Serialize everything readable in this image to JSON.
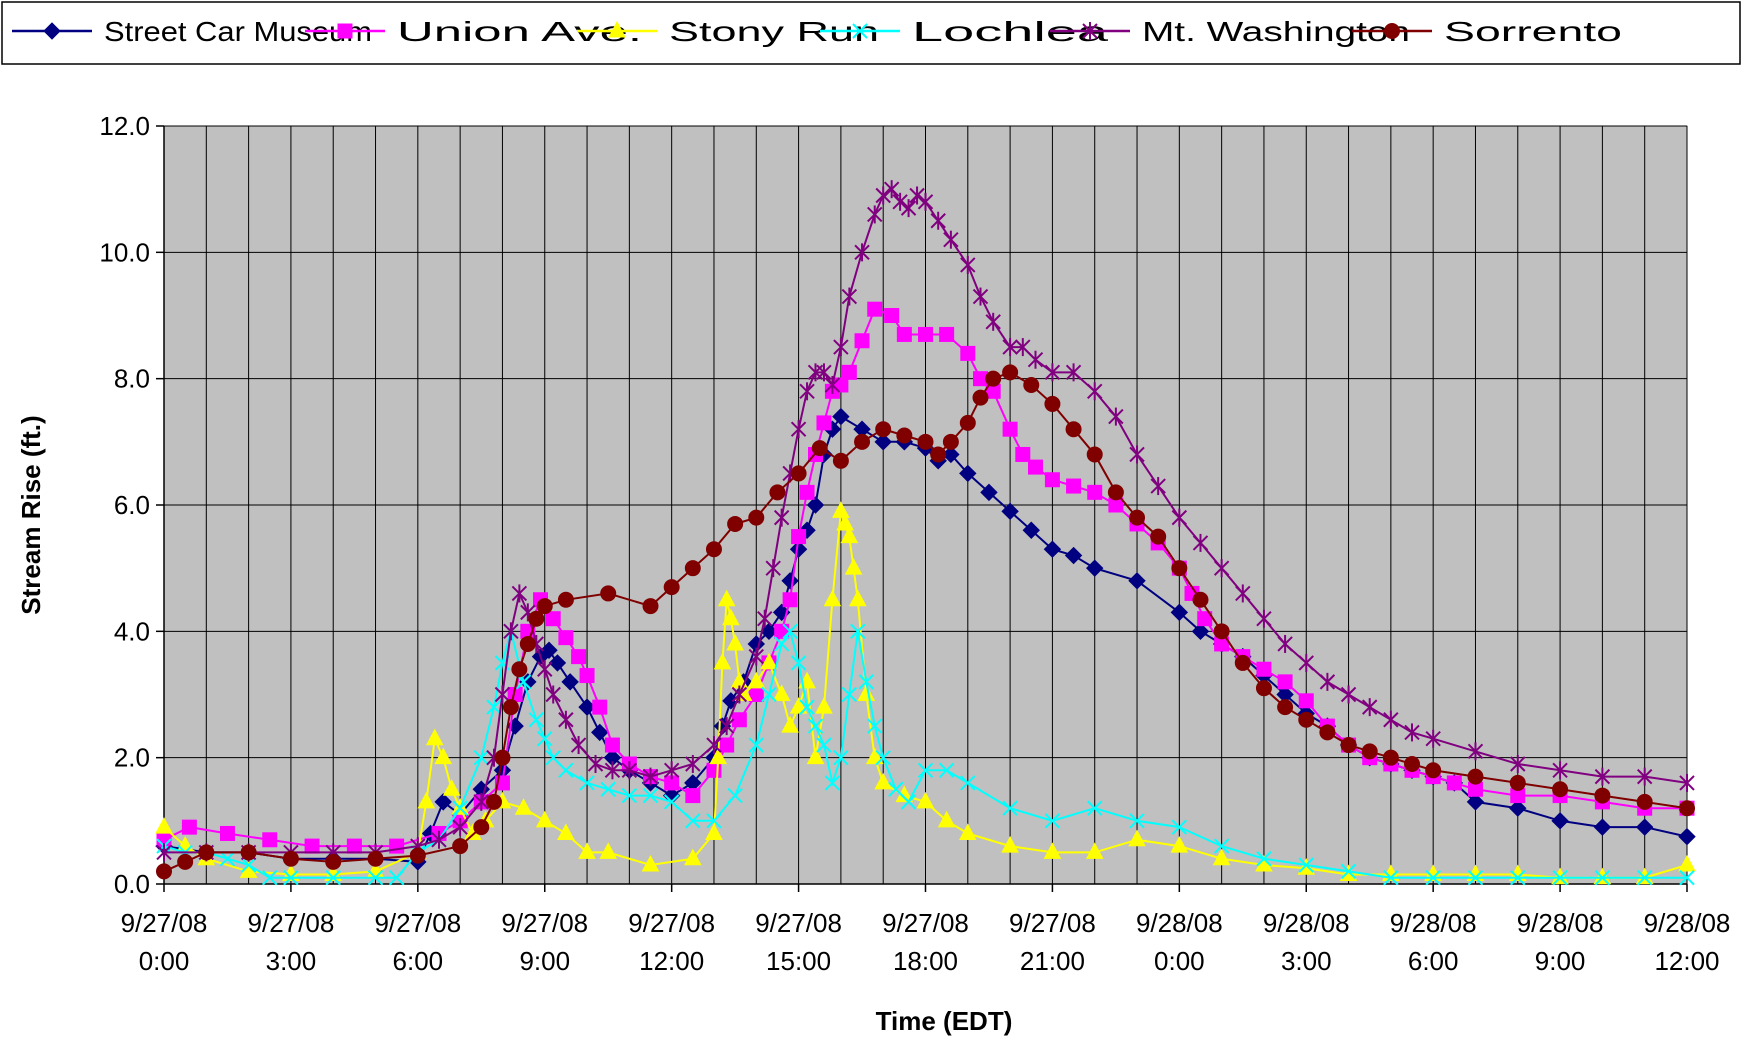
{
  "chart_data": {
    "type": "line",
    "title": "",
    "xlabel": "Time (EDT)",
    "ylabel": "Stream Rise (ft.)",
    "xlim_hours": [
      0,
      36
    ],
    "ylim": [
      0,
      12
    ],
    "y_ticks": [
      "0.0",
      "2.0",
      "4.0",
      "6.0",
      "8.0",
      "10.0",
      "12.0"
    ],
    "x_ticks": [
      {
        "date": "9/27/08",
        "time": "0:00",
        "hour": 0
      },
      {
        "date": "9/27/08",
        "time": "3:00",
        "hour": 3
      },
      {
        "date": "9/27/08",
        "time": "6:00",
        "hour": 6
      },
      {
        "date": "9/27/08",
        "time": "9:00",
        "hour": 9
      },
      {
        "date": "9/27/08",
        "time": "12:00",
        "hour": 12
      },
      {
        "date": "9/27/08",
        "time": "15:00",
        "hour": 15
      },
      {
        "date": "9/27/08",
        "time": "18:00",
        "hour": 18
      },
      {
        "date": "9/27/08",
        "time": "21:00",
        "hour": 21
      },
      {
        "date": "9/28/08",
        "time": "0:00",
        "hour": 24
      },
      {
        "date": "9/28/08",
        "time": "3:00",
        "hour": 27
      },
      {
        "date": "9/28/08",
        "time": "6:00",
        "hour": 30
      },
      {
        "date": "9/28/08",
        "time": "9:00",
        "hour": 33
      },
      {
        "date": "9/28/08",
        "time": "12:00",
        "hour": 36
      }
    ],
    "grid": true,
    "plot_background": "#c0c0c0",
    "legend_position": "top",
    "series": [
      {
        "name": "Street Car Museum",
        "color": "#000080",
        "marker": "diamond",
        "x": [
          0,
          1,
          2,
          3,
          4,
          5,
          6,
          6.3,
          6.6,
          7,
          7.5,
          8,
          8.3,
          8.6,
          8.9,
          9.1,
          9.3,
          9.6,
          10,
          10.3,
          10.6,
          11,
          11.5,
          12,
          12.5,
          13,
          13.2,
          13.4,
          13.7,
          14,
          14.3,
          14.6,
          14.8,
          15,
          15.2,
          15.4,
          15.6,
          15.8,
          16,
          16.5,
          17,
          17.5,
          18,
          18.3,
          18.6,
          19,
          19.5,
          20,
          20.5,
          21,
          21.5,
          22,
          23,
          24,
          24.5,
          25,
          25.5,
          26,
          26.5,
          27,
          27.5,
          28,
          28.5,
          29,
          29.5,
          30,
          30.5,
          31,
          32,
          33,
          34,
          35,
          36
        ],
        "y": [
          0.6,
          0.5,
          0.5,
          0.4,
          0.4,
          0.4,
          0.35,
          0.8,
          1.3,
          1.1,
          1.5,
          1.8,
          2.5,
          3.2,
          3.6,
          3.7,
          3.5,
          3.2,
          2.8,
          2.4,
          2.0,
          1.8,
          1.6,
          1.4,
          1.6,
          2.0,
          2.5,
          2.9,
          3.2,
          3.8,
          4.0,
          4.3,
          4.8,
          5.3,
          5.6,
          6.0,
          6.8,
          7.2,
          7.4,
          7.2,
          7.0,
          7.0,
          6.9,
          6.7,
          6.8,
          6.5,
          6.2,
          5.9,
          5.6,
          5.3,
          5.2,
          5.0,
          4.8,
          4.3,
          4.0,
          3.8,
          3.6,
          3.3,
          3.0,
          2.7,
          2.5,
          2.2,
          2.0,
          1.9,
          1.8,
          1.7,
          1.6,
          1.3,
          1.2,
          1.0,
          0.9,
          0.9,
          0.75
        ]
      },
      {
        "name": "Union Ave.",
        "color": "#ff00ff",
        "marker": "square",
        "x": [
          0,
          0.6,
          1.5,
          2.5,
          3.5,
          4.5,
          5.5,
          6.5,
          7,
          7.5,
          8,
          8.3,
          8.6,
          8.9,
          9.2,
          9.5,
          9.8,
          10,
          10.3,
          10.6,
          11,
          11.5,
          12,
          12.5,
          13,
          13.3,
          13.6,
          14,
          14.3,
          14.6,
          14.8,
          15,
          15.2,
          15.4,
          15.6,
          15.8,
          16,
          16.2,
          16.5,
          16.8,
          17.2,
          17.5,
          18,
          18.5,
          19,
          19.3,
          19.6,
          20,
          20.3,
          20.6,
          21,
          21.5,
          22,
          22.5,
          23,
          23.5,
          24,
          24.3,
          24.6,
          25,
          25.5,
          26,
          26.5,
          27,
          27.5,
          28,
          28.5,
          29,
          29.5,
          30,
          30.5,
          31,
          32,
          33,
          34,
          35,
          36
        ],
        "y": [
          0.7,
          0.9,
          0.8,
          0.7,
          0.6,
          0.6,
          0.6,
          0.8,
          1.0,
          1.3,
          1.6,
          3.0,
          4.0,
          4.5,
          4.2,
          3.9,
          3.6,
          3.3,
          2.8,
          2.2,
          1.9,
          1.7,
          1.6,
          1.4,
          1.8,
          2.2,
          2.6,
          3.0,
          3.5,
          4.0,
          4.5,
          5.5,
          6.2,
          6.8,
          7.3,
          7.8,
          7.9,
          8.1,
          8.6,
          9.1,
          9.0,
          8.7,
          8.7,
          8.7,
          8.4,
          8.0,
          7.8,
          7.2,
          6.8,
          6.6,
          6.4,
          6.3,
          6.2,
          6.0,
          5.7,
          5.4,
          5.0,
          4.6,
          4.2,
          3.8,
          3.6,
          3.4,
          3.2,
          2.9,
          2.5,
          2.2,
          2.0,
          1.9,
          1.8,
          1.7,
          1.6,
          1.5,
          1.4,
          1.4,
          1.3,
          1.2,
          1.2
        ]
      },
      {
        "name": "Stony Run",
        "color": "#ffff00",
        "marker": "triangle",
        "x": [
          0,
          0.5,
          1,
          2,
          3,
          4,
          5,
          6,
          6.2,
          6.4,
          6.6,
          6.8,
          7,
          7.3,
          7.6,
          8,
          8.5,
          9,
          9.5,
          10,
          10.5,
          11.5,
          12.5,
          13,
          13.1,
          13.2,
          13.3,
          13.4,
          13.5,
          13.6,
          13.7,
          14,
          14.3,
          14.6,
          14.8,
          15,
          15.2,
          15.4,
          15.6,
          15.8,
          16,
          16.1,
          16.2,
          16.3,
          16.4,
          16.6,
          16.8,
          17,
          17.5,
          18,
          18.5,
          19,
          20,
          21,
          22,
          23,
          24,
          25,
          26,
          27,
          28,
          29,
          30,
          31,
          32,
          33,
          34,
          35,
          36
        ],
        "y": [
          0.9,
          0.6,
          0.4,
          0.2,
          0.15,
          0.15,
          0.2,
          0.5,
          1.3,
          2.3,
          2.0,
          1.5,
          1.2,
          0.8,
          1.0,
          1.3,
          1.2,
          1.0,
          0.8,
          0.5,
          0.5,
          0.3,
          0.4,
          0.8,
          2.0,
          3.5,
          4.5,
          4.2,
          3.8,
          3.2,
          3.0,
          3.2,
          3.5,
          3.0,
          2.5,
          2.8,
          3.2,
          2.0,
          2.8,
          4.5,
          5.9,
          5.7,
          5.5,
          5.0,
          4.5,
          3.0,
          2.0,
          1.6,
          1.4,
          1.3,
          1.0,
          0.8,
          0.6,
          0.5,
          0.5,
          0.7,
          0.6,
          0.4,
          0.3,
          0.25,
          0.15,
          0.15,
          0.15,
          0.15,
          0.15,
          0.1,
          0.1,
          0.1,
          0.3
        ]
      },
      {
        "name": "Lochlea",
        "color": "#00ffff",
        "marker": "x",
        "x": [
          0,
          0.5,
          1,
          1.5,
          2,
          2.5,
          3,
          4,
          5,
          5.5,
          6,
          6.5,
          7,
          7.5,
          7.8,
          8,
          8.2,
          8.5,
          8.8,
          9,
          9.2,
          9.5,
          10,
          10.5,
          11,
          11.5,
          12,
          12.5,
          13,
          13.5,
          14,
          14.3,
          14.6,
          14.8,
          15,
          15.2,
          15.4,
          15.6,
          15.8,
          16,
          16.2,
          16.4,
          16.6,
          16.8,
          17,
          17.3,
          17.6,
          18,
          18.5,
          19,
          20,
          21,
          22,
          23,
          24,
          25,
          26,
          27,
          28,
          29,
          30,
          31,
          32,
          33,
          34,
          35,
          36
        ],
        "y": [
          0.6,
          0.5,
          0.5,
          0.4,
          0.3,
          0.1,
          0.1,
          0.1,
          0.1,
          0.1,
          0.5,
          0.7,
          1.2,
          2.0,
          2.8,
          3.5,
          4.0,
          3.2,
          2.6,
          2.3,
          2.0,
          1.8,
          1.6,
          1.5,
          1.4,
          1.4,
          1.3,
          1.0,
          1.0,
          1.4,
          2.2,
          3.0,
          3.8,
          4.0,
          3.5,
          2.8,
          2.5,
          2.2,
          1.6,
          2.0,
          3.0,
          4.0,
          3.2,
          2.5,
          2.0,
          1.5,
          1.3,
          1.8,
          1.8,
          1.6,
          1.2,
          1.0,
          1.2,
          1.0,
          0.9,
          0.6,
          0.4,
          0.3,
          0.2,
          0.1,
          0.1,
          0.1,
          0.1,
          0.1,
          0.1,
          0.1,
          0.1
        ]
      },
      {
        "name": "Mt. Washington",
        "color": "#800080",
        "marker": "star",
        "x": [
          0,
          1,
          2,
          3,
          4,
          5,
          6,
          6.5,
          7,
          7.5,
          7.8,
          8,
          8.2,
          8.4,
          8.6,
          8.8,
          9,
          9.2,
          9.5,
          9.8,
          10.2,
          10.6,
          11,
          11.5,
          12,
          12.5,
          13,
          13.3,
          13.6,
          14,
          14.2,
          14.4,
          14.6,
          14.8,
          15,
          15.2,
          15.4,
          15.6,
          15.8,
          16,
          16.2,
          16.5,
          16.8,
          17,
          17.2,
          17.4,
          17.6,
          17.8,
          18,
          18.3,
          18.6,
          19,
          19.3,
          19.6,
          20,
          20.3,
          20.6,
          21,
          21.5,
          22,
          22.5,
          23,
          23.5,
          24,
          24.5,
          25,
          25.5,
          26,
          26.5,
          27,
          27.5,
          28,
          28.5,
          29,
          29.5,
          30,
          31,
          32,
          33,
          34,
          35,
          36
        ],
        "y": [
          0.5,
          0.5,
          0.5,
          0.5,
          0.5,
          0.5,
          0.6,
          0.7,
          0.9,
          1.3,
          2.0,
          3.0,
          4.0,
          4.6,
          4.3,
          3.8,
          3.4,
          3.0,
          2.6,
          2.2,
          1.9,
          1.8,
          1.8,
          1.7,
          1.8,
          1.9,
          2.2,
          2.5,
          3.0,
          3.6,
          4.2,
          5.0,
          5.8,
          6.5,
          7.2,
          7.8,
          8.1,
          8.1,
          7.9,
          8.5,
          9.3,
          10.0,
          10.6,
          10.9,
          11.0,
          10.8,
          10.7,
          10.9,
          10.8,
          10.5,
          10.2,
          9.8,
          9.3,
          8.9,
          8.5,
          8.5,
          8.3,
          8.1,
          8.1,
          7.8,
          7.4,
          6.8,
          6.3,
          5.8,
          5.4,
          5.0,
          4.6,
          4.2,
          3.8,
          3.5,
          3.2,
          3.0,
          2.8,
          2.6,
          2.4,
          2.3,
          2.1,
          1.9,
          1.8,
          1.7,
          1.7,
          1.6
        ]
      },
      {
        "name": "Sorrento",
        "color": "#800000",
        "marker": "circle",
        "x": [
          0,
          0.5,
          1,
          2,
          3,
          4,
          5,
          6,
          7,
          7.5,
          7.8,
          8,
          8.2,
          8.4,
          8.6,
          8.8,
          9,
          9.5,
          10.5,
          11.5,
          12,
          12.5,
          13,
          13.5,
          14,
          14.5,
          15,
          15.5,
          16,
          16.5,
          17,
          17.5,
          18,
          18.3,
          18.6,
          19,
          19.3,
          19.6,
          20,
          20.5,
          21,
          21.5,
          22,
          22.5,
          23,
          23.5,
          24,
          24.5,
          25,
          25.5,
          26,
          26.5,
          27,
          27.5,
          28,
          28.5,
          29,
          29.5,
          30,
          31,
          32,
          33,
          34,
          35,
          36
        ],
        "y": [
          0.2,
          0.35,
          0.5,
          0.5,
          0.4,
          0.35,
          0.4,
          0.45,
          0.6,
          0.9,
          1.3,
          2.0,
          2.8,
          3.4,
          3.8,
          4.2,
          4.4,
          4.5,
          4.6,
          4.4,
          4.7,
          5.0,
          5.3,
          5.7,
          5.8,
          6.2,
          6.5,
          6.9,
          6.7,
          7.0,
          7.2,
          7.1,
          7.0,
          6.8,
          7.0,
          7.3,
          7.7,
          8.0,
          8.1,
          7.9,
          7.6,
          7.2,
          6.8,
          6.2,
          5.8,
          5.5,
          5.0,
          4.5,
          4.0,
          3.5,
          3.1,
          2.8,
          2.6,
          2.4,
          2.2,
          2.1,
          2.0,
          1.9,
          1.8,
          1.7,
          1.6,
          1.5,
          1.4,
          1.3,
          1.2
        ]
      }
    ]
  }
}
